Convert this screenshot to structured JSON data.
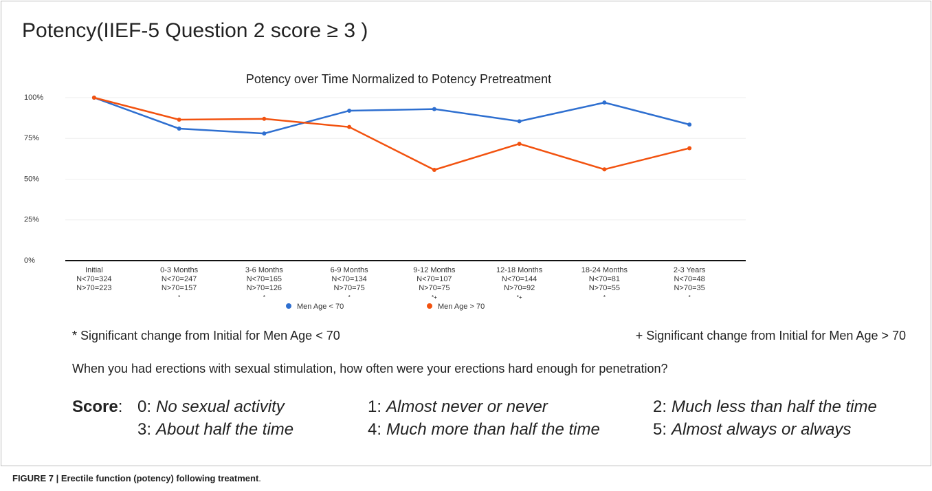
{
  "header": {
    "title": "Potency(IIEF-5 Question 2 score ≥ 3 )"
  },
  "chart_data": {
    "type": "line",
    "title": "Potency over Time Normalized to Potency Pretreatment",
    "categories": [
      "Initial",
      "0-3 Months",
      "3-6 Months",
      "6-9 Months",
      "9-12 Months",
      "12-18 Months",
      "18-24 Months",
      "2-3 Years"
    ],
    "n_under_70": [
      "N<70=324",
      "N<70=247",
      "N<70=165",
      "N<70=134",
      "N<70=107",
      "N<70=144",
      "N<70=81",
      "N<70=48"
    ],
    "n_over_70": [
      "N>70=223",
      "N>70=157",
      "N>70=126",
      "N>70=75",
      "N>70=75",
      "N>70=92",
      "N>70=55",
      "N>70=35"
    ],
    "significance": [
      null,
      "*",
      "*",
      "*",
      "*+",
      "*+",
      "*",
      "*"
    ],
    "series": [
      {
        "name": "Men Age < 70",
        "color": "#2e6fd0",
        "values": [
          100,
          81,
          78,
          92,
          93,
          85.5,
          97,
          83.5
        ]
      },
      {
        "name": "Men Age > 70",
        "color": "#f2520f",
        "values": [
          100,
          86.5,
          87,
          82,
          55.7,
          71.7,
          56,
          69
        ]
      }
    ],
    "ylim": [
      0,
      100
    ],
    "yticks": [
      {
        "value": 0,
        "label": "0%"
      },
      {
        "value": 25,
        "label": "25%"
      },
      {
        "value": 50,
        "label": "50%"
      },
      {
        "value": 75,
        "label": "75%"
      },
      {
        "value": 100,
        "label": "100%"
      }
    ],
    "grid": true
  },
  "footnotes": {
    "left": "* Significant change from Initial for Men Age < 70",
    "right": "+ Significant change from Initial for Men Age > 70"
  },
  "question": "When you had erections with sexual stimulation, how often were your erections hard enough for penetration?",
  "score": {
    "label": "Score",
    "colon": ":",
    "items": [
      {
        "code": "0:",
        "text": "No sexual activity"
      },
      {
        "code": "1:",
        "text": "Almost never or never"
      },
      {
        "code": "2:",
        "text": "Much less than half the time"
      },
      {
        "code": "3:",
        "text": "About half the time"
      },
      {
        "code": "4:",
        "text": "Much more than half the time"
      },
      {
        "code": "5:",
        "text": "Almost always or always"
      }
    ]
  },
  "caption": {
    "bold": "FIGURE 7 | Erectile function (potency) following treatment",
    "rest": "."
  }
}
